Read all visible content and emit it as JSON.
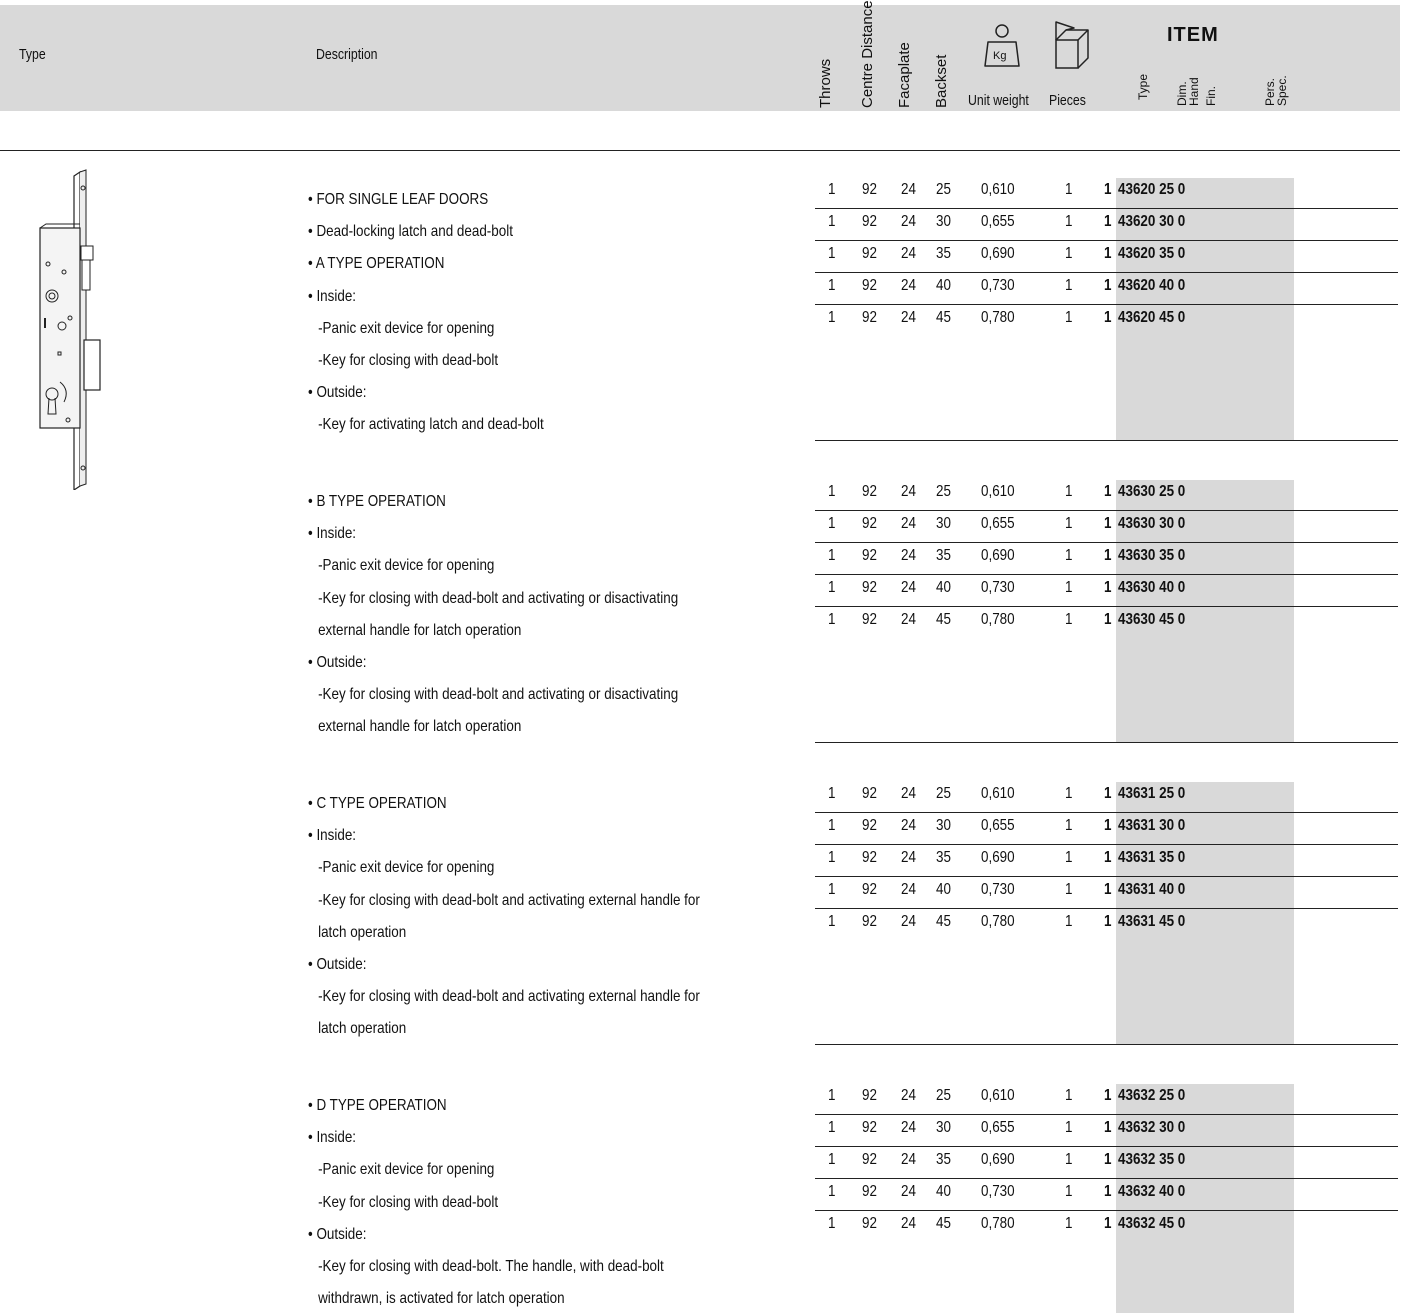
{
  "header": {
    "type_label": "Type",
    "description_label": "Description",
    "throws_label": "Throws",
    "centre_distance_label": "Centre Distance",
    "faceplate_label": "Facaplate",
    "backset_label": "Backset",
    "weight_icon_text": "Kg",
    "unit_weight_label": "Unit weight",
    "pieces_label": "Pieces",
    "item_title": "ITEM",
    "item_sub_type": "Type",
    "item_sub_dim": "Dim.",
    "item_sub_hand": "Hand",
    "item_sub_fin": "Fin.",
    "item_sub_pers": "Pers.",
    "item_sub_spec": "Spec."
  },
  "groups": [
    {
      "lines": [
        {
          "text": "• FOR SINGLE LEAF DOORS",
          "sub": false
        },
        {
          "text": "• Dead-locking latch and dead-bolt",
          "sub": false
        },
        {
          "text": "• A TYPE OPERATION",
          "sub": false
        },
        {
          "text": "• Inside:",
          "sub": false
        },
        {
          "text": "-Panic exit device for opening",
          "sub": true
        },
        {
          "text": "-Key for closing with dead-bolt",
          "sub": true
        },
        {
          "text": "• Outside:",
          "sub": false
        },
        {
          "text": "-Key for activating latch and dead-bolt",
          "sub": true
        }
      ],
      "rows": [
        {
          "throws": "1",
          "centre": "92",
          "face": "24",
          "backset": "25",
          "weight": "0,610",
          "pieces": "1",
          "type": "1",
          "code": "43620 25 0"
        },
        {
          "throws": "1",
          "centre": "92",
          "face": "24",
          "backset": "30",
          "weight": "0,655",
          "pieces": "1",
          "type": "1",
          "code": "43620 30 0"
        },
        {
          "throws": "1",
          "centre": "92",
          "face": "24",
          "backset": "35",
          "weight": "0,690",
          "pieces": "1",
          "type": "1",
          "code": "43620 35 0"
        },
        {
          "throws": "1",
          "centre": "92",
          "face": "24",
          "backset": "40",
          "weight": "0,730",
          "pieces": "1",
          "type": "1",
          "code": "43620 40 0"
        },
        {
          "throws": "1",
          "centre": "92",
          "face": "24",
          "backset": "45",
          "weight": "0,780",
          "pieces": "1",
          "type": "1",
          "code": "43620 45 0"
        }
      ]
    },
    {
      "lines": [
        {
          "text": "• B TYPE OPERATION",
          "sub": false
        },
        {
          "text": "• Inside:",
          "sub": false
        },
        {
          "text": "-Panic exit device for opening",
          "sub": true
        },
        {
          "text": "-Key for closing with dead-bolt and  activating or disactivating",
          "sub": true
        },
        {
          "text": "external handle for latch operation",
          "sub": true
        },
        {
          "text": "• Outside:",
          "sub": false
        },
        {
          "text": "-Key for closing with dead-bolt and activating or disactivating",
          "sub": true
        },
        {
          "text": "external handle for latch operation",
          "sub": true
        }
      ],
      "rows": [
        {
          "throws": "1",
          "centre": "92",
          "face": "24",
          "backset": "25",
          "weight": "0,610",
          "pieces": "1",
          "type": "1",
          "code": "43630 25 0"
        },
        {
          "throws": "1",
          "centre": "92",
          "face": "24",
          "backset": "30",
          "weight": "0,655",
          "pieces": "1",
          "type": "1",
          "code": "43630 30 0"
        },
        {
          "throws": "1",
          "centre": "92",
          "face": "24",
          "backset": "35",
          "weight": "0,690",
          "pieces": "1",
          "type": "1",
          "code": "43630 35 0"
        },
        {
          "throws": "1",
          "centre": "92",
          "face": "24",
          "backset": "40",
          "weight": "0,730",
          "pieces": "1",
          "type": "1",
          "code": "43630 40 0"
        },
        {
          "throws": "1",
          "centre": "92",
          "face": "24",
          "backset": "45",
          "weight": "0,780",
          "pieces": "1",
          "type": "1",
          "code": "43630 45 0"
        }
      ]
    },
    {
      "lines": [
        {
          "text": "• C TYPE OPERATION",
          "sub": false
        },
        {
          "text": "• Inside:",
          "sub": false
        },
        {
          "text": "-Panic exit device for opening",
          "sub": true
        },
        {
          "text": "-Key for closing with dead-bolt and  activating external handle for",
          "sub": true
        },
        {
          "text": "latch operation",
          "sub": true
        },
        {
          "text": "• Outside:",
          "sub": false
        },
        {
          "text": "-Key for closing with dead-bolt and activating external handle for",
          "sub": true
        },
        {
          "text": "latch operation",
          "sub": true
        }
      ],
      "rows": [
        {
          "throws": "1",
          "centre": "92",
          "face": "24",
          "backset": "25",
          "weight": "0,610",
          "pieces": "1",
          "type": "1",
          "code": "43631 25 0"
        },
        {
          "throws": "1",
          "centre": "92",
          "face": "24",
          "backset": "30",
          "weight": "0,655",
          "pieces": "1",
          "type": "1",
          "code": "43631 30 0"
        },
        {
          "throws": "1",
          "centre": "92",
          "face": "24",
          "backset": "35",
          "weight": "0,690",
          "pieces": "1",
          "type": "1",
          "code": "43631 35 0"
        },
        {
          "throws": "1",
          "centre": "92",
          "face": "24",
          "backset": "40",
          "weight": "0,730",
          "pieces": "1",
          "type": "1",
          "code": "43631 40 0"
        },
        {
          "throws": "1",
          "centre": "92",
          "face": "24",
          "backset": "45",
          "weight": "0,780",
          "pieces": "1",
          "type": "1",
          "code": "43631 45 0"
        }
      ]
    },
    {
      "lines": [
        {
          "text": "• D TYPE OPERATION",
          "sub": false
        },
        {
          "text": "• Inside:",
          "sub": false
        },
        {
          "text": "-Panic exit device for opening",
          "sub": true
        },
        {
          "text": "-Key for closing with dead-bolt",
          "sub": true
        },
        {
          "text": "• Outside:",
          "sub": false
        },
        {
          "text": "-Key for closing with dead-bolt. The handle, with dead-bolt",
          "sub": true
        },
        {
          "text": "withdrawn, is activated for latch operation",
          "sub": true
        }
      ],
      "rows": [
        {
          "throws": "1",
          "centre": "92",
          "face": "24",
          "backset": "25",
          "weight": "0,610",
          "pieces": "1",
          "type": "1",
          "code": "43632 25 0"
        },
        {
          "throws": "1",
          "centre": "92",
          "face": "24",
          "backset": "30",
          "weight": "0,655",
          "pieces": "1",
          "type": "1",
          "code": "43632 30 0"
        },
        {
          "throws": "1",
          "centre": "92",
          "face": "24",
          "backset": "35",
          "weight": "0,690",
          "pieces": "1",
          "type": "1",
          "code": "43632 35 0"
        },
        {
          "throws": "1",
          "centre": "92",
          "face": "24",
          "backset": "40",
          "weight": "0,730",
          "pieces": "1",
          "type": "1",
          "code": "43632 40 0"
        },
        {
          "throws": "1",
          "centre": "92",
          "face": "24",
          "backset": "45",
          "weight": "0,780",
          "pieces": "1",
          "type": "1",
          "code": "43632 45 0"
        }
      ]
    }
  ]
}
